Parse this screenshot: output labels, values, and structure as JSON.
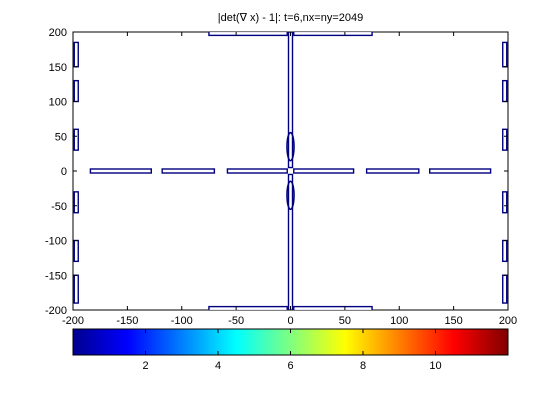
{
  "chart_data": {
    "type": "line",
    "title": "|det(∇ x) - 1|: t=6,nx=ny=2049",
    "xlabel": "",
    "ylabel": "",
    "xlim": [
      -200,
      200
    ],
    "ylim": [
      -200,
      200
    ],
    "xticks": [
      -200,
      -150,
      -100,
      -50,
      0,
      50,
      100,
      150,
      200
    ],
    "yticks": [
      200,
      150,
      100,
      50,
      0,
      -50,
      -100,
      -150,
      -200
    ],
    "grid": false,
    "line_color": "#000080",
    "axes_background": "#ffffff",
    "series": [
      {
        "segments": [
          [
            [
              -184,
              0
            ],
            [
              -128,
              0
            ]
          ],
          [
            [
              -118,
              0
            ],
            [
              -70,
              0
            ]
          ],
          [
            [
              -58,
              0
            ],
            [
              -3,
              0
            ]
          ],
          [
            [
              3,
              0
            ],
            [
              58,
              0
            ]
          ],
          [
            [
              70,
              0
            ],
            [
              118,
              0
            ]
          ],
          [
            [
              128,
              0
            ],
            [
              184,
              0
            ]
          ],
          [
            [
              0,
              200
            ],
            [
              0,
              5
            ]
          ],
          [
            [
              0,
              -5
            ],
            [
              0,
              -200
            ]
          ],
          [
            [
              -197,
              185
            ],
            [
              -197,
              150
            ]
          ],
          [
            [
              -197,
              130
            ],
            [
              -197,
              100
            ]
          ],
          [
            [
              -197,
              60
            ],
            [
              -197,
              30
            ]
          ],
          [
            [
              -197,
              -30
            ],
            [
              -197,
              -60
            ]
          ],
          [
            [
              -197,
              -100
            ],
            [
              -197,
              -130
            ]
          ],
          [
            [
              -197,
              -150
            ],
            [
              -197,
              -190
            ]
          ],
          [
            [
              197,
              185
            ],
            [
              197,
              150
            ]
          ],
          [
            [
              197,
              130
            ],
            [
              197,
              100
            ]
          ],
          [
            [
              197,
              60
            ],
            [
              197,
              30
            ]
          ],
          [
            [
              197,
              -30
            ],
            [
              197,
              -60
            ]
          ],
          [
            [
              197,
              -100
            ],
            [
              197,
              -130
            ]
          ],
          [
            [
              197,
              -150
            ],
            [
              197,
              -190
            ]
          ],
          [
            [
              -75,
              198
            ],
            [
              -3,
              198
            ]
          ],
          [
            [
              3,
              198
            ],
            [
              75,
              198
            ]
          ],
          [
            [
              -75,
              -198
            ],
            [
              -3,
              -198
            ]
          ],
          [
            [
              3,
              -198
            ],
            [
              75,
              -198
            ]
          ]
        ],
        "loops": [
          [
            0,
            35
          ],
          [
            0,
            -35
          ]
        ]
      }
    ],
    "colorbar": {
      "colormap": "jet",
      "range": [
        0,
        12
      ],
      "ticks": [
        2,
        4,
        6,
        8,
        10
      ],
      "orientation": "horizontal",
      "placement": "bottom"
    }
  }
}
